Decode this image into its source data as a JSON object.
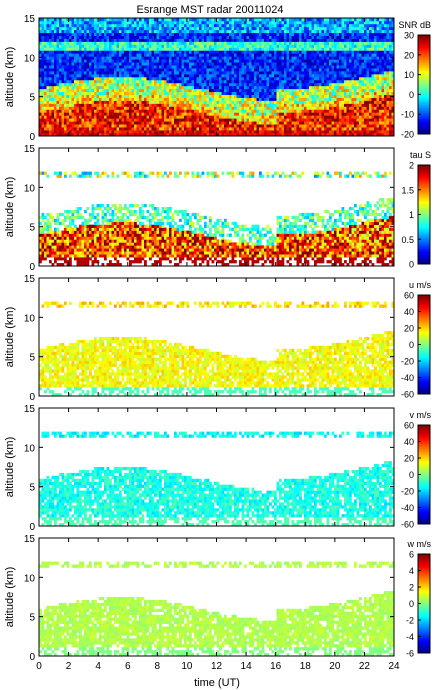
{
  "chart_data": {
    "type": "heatmap",
    "title": "Esrange MST radar 20011024",
    "xlabel": "time (UT)",
    "x_ticks": [
      0,
      2,
      4,
      6,
      8,
      10,
      12,
      14,
      16,
      18,
      20,
      22,
      24
    ],
    "xlim": [
      0,
      24
    ],
    "colormap": "jet",
    "panels": [
      {
        "name": "snr",
        "ylabel": "altitude (km)",
        "ylim": [
          0,
          15
        ],
        "y_ticks": [
          0,
          5,
          10,
          15
        ],
        "colorbar_label": "SNR dB",
        "clim": [
          -20,
          30
        ],
        "colorbar_ticks": [
          -20,
          -10,
          0,
          10,
          20,
          30
        ],
        "pattern": "snr",
        "coverage": 1.0
      },
      {
        "name": "tau",
        "ylabel": "altitude (km)",
        "ylim": [
          0,
          15
        ],
        "y_ticks": [
          0,
          5,
          10,
          15
        ],
        "colorbar_label": "tau S",
        "clim": [
          0,
          2
        ],
        "colorbar_ticks": [
          0,
          0.5,
          1,
          1.5,
          2
        ],
        "pattern": "tau",
        "coverage": 0.7
      },
      {
        "name": "u",
        "ylabel": "altitude (km)",
        "ylim": [
          0,
          15
        ],
        "y_ticks": [
          0,
          5,
          10,
          15
        ],
        "colorbar_label": "u m/s",
        "clim": [
          -60,
          60
        ],
        "colorbar_ticks": [
          -60,
          -40,
          -20,
          0,
          20,
          40,
          60
        ],
        "pattern": "u",
        "coverage": 0.65
      },
      {
        "name": "v",
        "ylabel": "altitude (km)",
        "ylim": [
          0,
          15
        ],
        "y_ticks": [
          0,
          5,
          10,
          15
        ],
        "colorbar_label": "v m/s",
        "clim": [
          -60,
          60
        ],
        "colorbar_ticks": [
          -60,
          -40,
          -20,
          0,
          20,
          40,
          60
        ],
        "pattern": "v",
        "coverage": 0.65
      },
      {
        "name": "w",
        "ylabel": "altitude (km)",
        "ylim": [
          0,
          15
        ],
        "y_ticks": [
          0,
          5,
          10,
          15
        ],
        "colorbar_label": "w m/s",
        "clim": [
          -6,
          6
        ],
        "colorbar_ticks": [
          -6,
          -4,
          -2,
          0,
          2,
          4,
          6
        ],
        "pattern": "w",
        "coverage": 0.65
      }
    ]
  }
}
